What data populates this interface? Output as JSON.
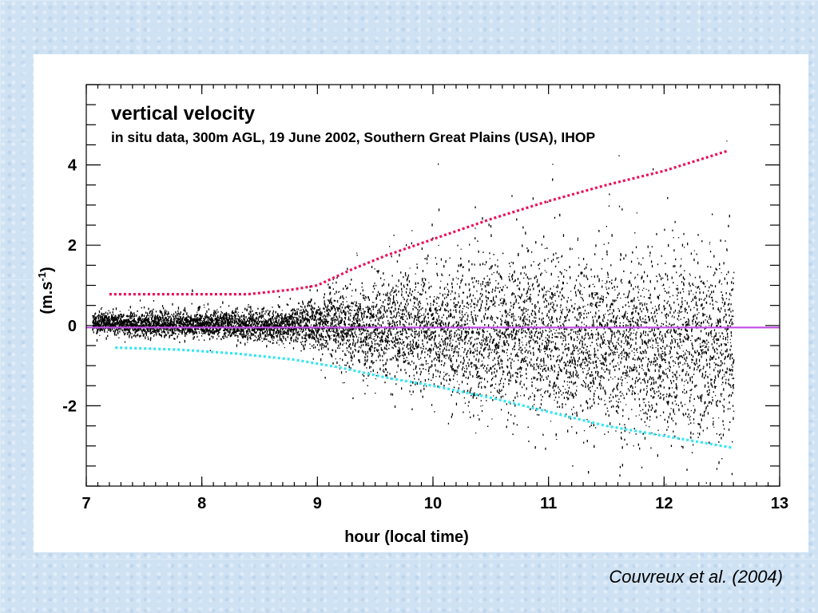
{
  "chart_data": {
    "type": "scatter",
    "title": "vertical velocity",
    "subtitle": "in situ data, 300m AGL, 19 June 2002, Southern Great Plains (USA), IHOP",
    "xlabel": "hour (local time)",
    "ylabel": "(m.s-1)",
    "ylabel_base": "(m.s",
    "ylabel_exp": "-1",
    "ylabel_close": ")",
    "xlim": [
      7,
      13
    ],
    "ylim": [
      -4,
      6
    ],
    "x_ticks": [
      7,
      8,
      9,
      10,
      11,
      12,
      13
    ],
    "y_ticks": [
      -2,
      0,
      2,
      4
    ],
    "y_minor_step": 0.5,
    "grid": false,
    "series": [
      {
        "name": "",
        "kind": "scatter",
        "color": "#000000",
        "x_start": 7.05,
        "x_end": 12.6,
        "samples": 8500,
        "std_dev": [
          [
            7.0,
            0.13
          ],
          [
            8.0,
            0.15
          ],
          [
            8.8,
            0.22
          ],
          [
            9.3,
            0.5
          ],
          [
            10.0,
            0.75
          ],
          [
            10.7,
            0.95
          ],
          [
            11.5,
            1.05
          ],
          [
            12.6,
            1.15
          ]
        ],
        "mean": [
          [
            7.0,
            0.05
          ],
          [
            9.0,
            0.0
          ],
          [
            10.5,
            -0.2
          ],
          [
            11.5,
            -0.4
          ],
          [
            12.6,
            -0.6
          ]
        ]
      },
      {
        "name": "",
        "kind": "line",
        "style": "dotted",
        "color": "#e8105a",
        "points": [
          [
            7.2,
            0.78
          ],
          [
            7.8,
            0.78
          ],
          [
            8.4,
            0.78
          ],
          [
            8.8,
            0.9
          ],
          [
            9.0,
            1.0
          ],
          [
            9.3,
            1.4
          ],
          [
            9.6,
            1.75
          ],
          [
            10.0,
            2.15
          ],
          [
            10.5,
            2.65
          ],
          [
            11.0,
            3.1
          ],
          [
            11.5,
            3.5
          ],
          [
            12.0,
            3.85
          ],
          [
            12.55,
            4.35
          ]
        ]
      },
      {
        "name": "",
        "kind": "line",
        "style": "dotted",
        "color": "#33e6f0",
        "points": [
          [
            7.25,
            -0.55
          ],
          [
            7.8,
            -0.6
          ],
          [
            8.3,
            -0.7
          ],
          [
            8.8,
            -0.85
          ],
          [
            9.2,
            -1.05
          ],
          [
            9.6,
            -1.3
          ],
          [
            10.0,
            -1.5
          ],
          [
            10.5,
            -1.8
          ],
          [
            11.0,
            -2.15
          ],
          [
            11.5,
            -2.5
          ],
          [
            12.0,
            -2.75
          ],
          [
            12.6,
            -3.05
          ]
        ]
      },
      {
        "name": "",
        "kind": "hline",
        "color": "#c44ce6",
        "y": -0.05
      }
    ]
  },
  "citation": "Couvreux et al. (2004)"
}
